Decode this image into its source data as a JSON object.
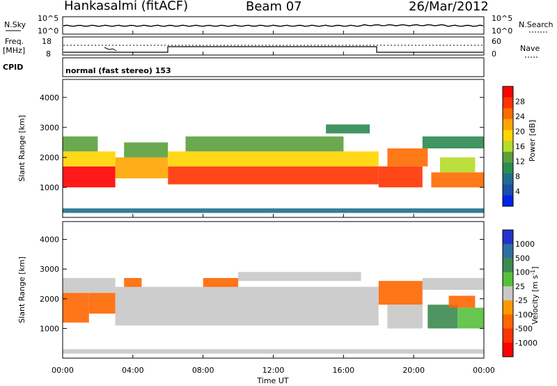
{
  "header": {
    "station": "Hankasalmi (fitACF)",
    "beam": "Beam 07",
    "date": "26/Mar/2012"
  },
  "strip": {
    "nsky_label": "N.Sky",
    "nsky_ticks": [
      "10^5",
      "10^0"
    ],
    "nsearch_label": "N.Search",
    "freq_label_1": "Freq.",
    "freq_label_2": "[MHz]",
    "freq_ticks": [
      "18",
      "8"
    ],
    "nave_ticks": [
      "60",
      "0"
    ],
    "nave_label": "Nave",
    "cpid_label": "CPID",
    "cpid_text": "normal (fast stereo) 153"
  },
  "axes": {
    "ylabel": "Slant Range [km]",
    "xlabel": "Time UT",
    "xticks": [
      "00:00",
      "04:00",
      "08:00",
      "12:00",
      "16:00",
      "20:00",
      "00:00"
    ],
    "yticks": [
      "1000",
      "2000",
      "3000",
      "4000"
    ]
  },
  "colorbars": {
    "power": {
      "label": "Power [dB]",
      "ticks": [
        "28",
        "24",
        "20",
        "16",
        "12",
        "8",
        "4"
      ],
      "colors": [
        "#ff0000",
        "#ff3300",
        "#ff6a00",
        "#ffa500",
        "#ffd400",
        "#b4dc28",
        "#5aa03c",
        "#2c8a50",
        "#1f6e8c",
        "#1b4fa8",
        "#0022ee"
      ]
    },
    "velocity": {
      "label": "Velocity [m s",
      "label_sup": "-1",
      "label_end": "]",
      "ticks": [
        "1000",
        "500",
        "100",
        "25",
        "-25",
        "-100",
        "-500",
        "-1000"
      ],
      "colors": [
        "#2233cc",
        "#2f6fa0",
        "#3c8a50",
        "#55c03c",
        "#c8c8c8",
        "#ff9900",
        "#ff6600",
        "#ff3300",
        "#ff0000"
      ]
    }
  },
  "chart_data": [
    {
      "type": "heatmap",
      "title": "Power",
      "x_unit": "hours UT",
      "xlim": [
        0,
        24
      ],
      "ylim": [
        0,
        4600
      ],
      "zlim": [
        0,
        32
      ],
      "regions": [
        {
          "x0": 0.0,
          "x1": 3.0,
          "y0": 1000,
          "y1": 1700,
          "value": 30
        },
        {
          "x0": 0.0,
          "x1": 3.0,
          "y0": 1700,
          "y1": 2200,
          "value": 20
        },
        {
          "x0": 0.0,
          "x1": 2.0,
          "y0": 2200,
          "y1": 2700,
          "value": 12
        },
        {
          "x0": 3.0,
          "x1": 6.0,
          "y0": 1300,
          "y1": 2000,
          "value": 22
        },
        {
          "x0": 3.5,
          "x1": 6.0,
          "y0": 2000,
          "y1": 2500,
          "value": 14
        },
        {
          "x0": 6.0,
          "x1": 18.0,
          "y0": 1100,
          "y1": 1700,
          "value": 28
        },
        {
          "x0": 6.0,
          "x1": 18.0,
          "y0": 1700,
          "y1": 2200,
          "value": 18
        },
        {
          "x0": 7.0,
          "x1": 16.0,
          "y0": 2200,
          "y1": 2700,
          "value": 12
        },
        {
          "x0": 15.0,
          "x1": 17.5,
          "y0": 2800,
          "y1": 3100,
          "value": 10
        },
        {
          "x0": 18.0,
          "x1": 20.5,
          "y0": 1000,
          "y1": 1700,
          "value": 28
        },
        {
          "x0": 18.5,
          "x1": 20.8,
          "y0": 1700,
          "y1": 2300,
          "value": 24
        },
        {
          "x0": 20.5,
          "x1": 24.0,
          "y0": 2300,
          "y1": 2700,
          "value": 10
        },
        {
          "x0": 21.0,
          "x1": 24.0,
          "y0": 1000,
          "y1": 1500,
          "value": 26
        },
        {
          "x0": 21.5,
          "x1": 23.5,
          "y0": 1500,
          "y1": 2000,
          "value": 16
        },
        {
          "x0": 0.0,
          "x1": 24.0,
          "y0": 150,
          "y1": 300,
          "value": 8
        }
      ]
    },
    {
      "type": "heatmap",
      "title": "Velocity",
      "x_unit": "hours UT",
      "xlim": [
        0,
        24
      ],
      "ylim": [
        0,
        4600
      ],
      "zlim": [
        -1000,
        1000
      ],
      "regions": [
        {
          "x0": 0.0,
          "x1": 1.5,
          "y0": 1200,
          "y1": 2200,
          "value": -150
        },
        {
          "x0": 1.5,
          "x1": 3.0,
          "y0": 1500,
          "y1": 2200,
          "value": -300
        },
        {
          "x0": 0.0,
          "x1": 3.0,
          "y0": 2200,
          "y1": 2700,
          "value": 0
        },
        {
          "x0": 3.0,
          "x1": 18.0,
          "y0": 1100,
          "y1": 2400,
          "value": 0
        },
        {
          "x0": 3.5,
          "x1": 4.5,
          "y0": 2400,
          "y1": 2700,
          "value": -300
        },
        {
          "x0": 8.0,
          "x1": 10.0,
          "y0": 2400,
          "y1": 2700,
          "value": -300
        },
        {
          "x0": 10.0,
          "x1": 17.0,
          "y0": 2600,
          "y1": 2900,
          "value": 0
        },
        {
          "x0": 18.0,
          "x1": 20.5,
          "y0": 1800,
          "y1": 2600,
          "value": -400
        },
        {
          "x0": 18.5,
          "x1": 20.5,
          "y0": 1000,
          "y1": 1800,
          "value": 0
        },
        {
          "x0": 20.5,
          "x1": 24.0,
          "y0": 2300,
          "y1": 2700,
          "value": 0
        },
        {
          "x0": 20.8,
          "x1": 22.5,
          "y0": 1000,
          "y1": 1800,
          "value": 300
        },
        {
          "x0": 22.5,
          "x1": 24.0,
          "y0": 1000,
          "y1": 1700,
          "value": 80
        },
        {
          "x0": 22.0,
          "x1": 23.5,
          "y0": 1700,
          "y1": 2100,
          "value": -200
        },
        {
          "x0": 0.0,
          "x1": 24.0,
          "y0": 150,
          "y1": 300,
          "value": 0
        }
      ]
    }
  ]
}
